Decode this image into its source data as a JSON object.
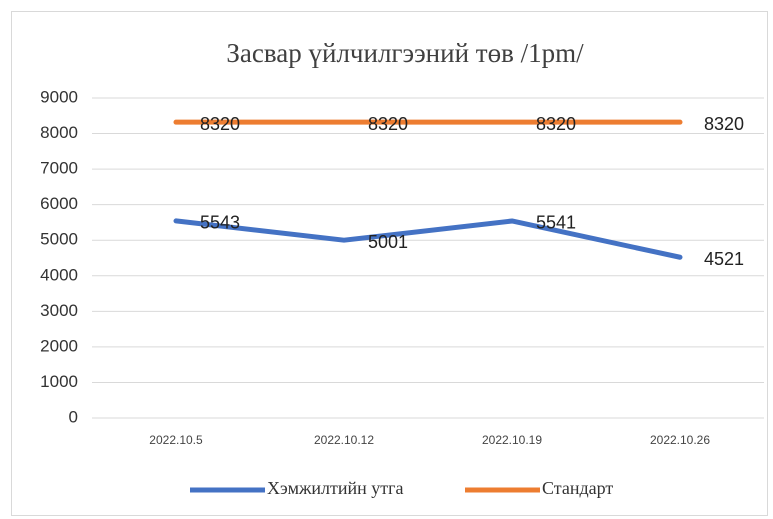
{
  "chart_data": {
    "type": "line",
    "title": "Засвар үйлчилгээний төв /1pm/",
    "categories": [
      "2022.10.5",
      "2022.10.12",
      "2022.10.19",
      "2022.10.26"
    ],
    "series": [
      {
        "name": "Хэмжилтийн утга",
        "color": "#4472c4",
        "values": [
          5543,
          5001,
          5541,
          4521
        ]
      },
      {
        "name": "Стандарт",
        "color": "#ed7d31",
        "values": [
          8320,
          8320,
          8320,
          8320
        ]
      }
    ],
    "ylim": [
      0,
      9000
    ],
    "yticks": [
      0,
      1000,
      2000,
      3000,
      4000,
      5000,
      6000,
      7000,
      8000,
      9000
    ],
    "grid": true,
    "legend": "bottom",
    "data_labels": true
  }
}
